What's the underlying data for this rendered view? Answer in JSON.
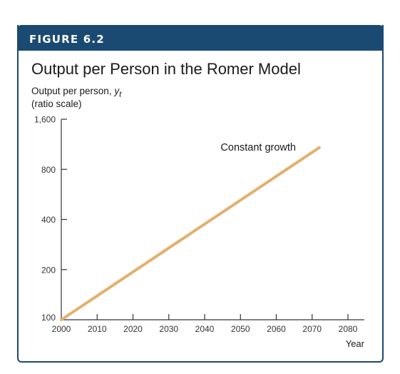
{
  "figure": {
    "label": "FIGURE 6.2",
    "title": "Output per Person in the Romer Model",
    "ylabel_prefix": "Output per person, ",
    "ylabel_var": "y",
    "ylabel_sub": "t",
    "ylabel_scale": "(ratio scale)"
  },
  "colors": {
    "header": "#1a4a72",
    "line": "#e3b070",
    "axis": "#333333"
  },
  "chart_data": {
    "type": "line",
    "title": "Output per Person in the Romer Model",
    "xlabel": "Year",
    "ylabel": "Output per person, y_t (ratio scale)",
    "y_scale": "log",
    "xlim": [
      2000,
      2080
    ],
    "ylim": [
      100,
      1600
    ],
    "x_ticks": [
      2000,
      2010,
      2020,
      2030,
      2040,
      2050,
      2060,
      2070,
      2080
    ],
    "x_tick_labels": [
      "2000",
      "2010",
      "2020",
      "2030",
      "2040",
      "2050",
      "2060",
      "2070",
      "2080"
    ],
    "y_ticks": [
      100,
      200,
      400,
      800,
      1600
    ],
    "y_tick_labels": [
      "100",
      "200",
      "400",
      "800",
      "1,600"
    ],
    "grid": false,
    "series": [
      {
        "x": [
          2000,
          2072
        ],
        "y": [
          100,
          1080
        ],
        "annotation": "Constant growth"
      }
    ]
  }
}
